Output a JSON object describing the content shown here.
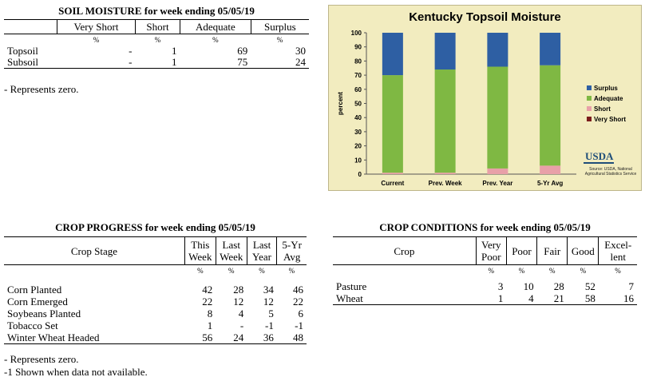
{
  "soil_moisture": {
    "caption": "SOIL MOISTURE for week ending 05/05/19",
    "columns": [
      "",
      "Very Short",
      "Short",
      "Adequate",
      "Surplus"
    ],
    "units": [
      "",
      "%",
      "%",
      "%",
      "%"
    ],
    "rows": [
      [
        "Topsoil",
        "-",
        "1",
        "69",
        "30"
      ],
      [
        "Subsoil",
        "-",
        "1",
        "75",
        "24"
      ]
    ],
    "note": "- Represents zero."
  },
  "crop_progress": {
    "caption": "CROP PROGRESS for week ending 05/05/19",
    "columns": [
      "Crop Stage",
      "This Week",
      "Last Week",
      "Last Year",
      "5-Yr Avg"
    ],
    "units": [
      "",
      "%",
      "%",
      "%",
      "%"
    ],
    "rows": [
      [
        "Corn Planted",
        "42",
        "28",
        "34",
        "46"
      ],
      [
        "Corn Emerged",
        "22",
        "12",
        "12",
        "22"
      ],
      [
        "Soybeans Planted",
        "8",
        "4",
        "5",
        "6"
      ],
      [
        "Tobacco Set",
        "1",
        "-",
        "-1",
        "-1"
      ],
      [
        "Winter Wheat Headed",
        "56",
        "24",
        "36",
        "48"
      ]
    ],
    "notes": [
      "- Represents zero.",
      "-1 Shown when data not available."
    ]
  },
  "crop_conditions": {
    "caption": "CROP CONDITIONS for week ending 05/05/19",
    "columns": [
      "Crop",
      "Very Poor",
      "Poor",
      "Fair",
      "Good",
      "Excel- lent"
    ],
    "units": [
      "",
      "%",
      "%",
      "%",
      "%",
      "%"
    ],
    "rows": [
      [
        "Pasture",
        "3",
        "10",
        "28",
        "52",
        "7"
      ],
      [
        "Wheat",
        "1",
        "4",
        "21",
        "58",
        "16"
      ]
    ]
  },
  "chart_data": {
    "type": "bar",
    "stacked": true,
    "title": "Kentucky Topsoil Moisture",
    "ylabel": "percent",
    "xlabel": "",
    "ylim": [
      0,
      100
    ],
    "yticks": [
      0,
      10,
      20,
      30,
      40,
      50,
      60,
      70,
      80,
      90,
      100
    ],
    "categories": [
      "Current",
      "Prev. Week",
      "Prev. Year",
      "5-Yr Avg"
    ],
    "series": [
      {
        "name": "Very Short",
        "color": "#7b1c1c",
        "values": [
          0,
          0,
          0,
          0
        ]
      },
      {
        "name": "Short",
        "color": "#e8a0a8",
        "values": [
          1,
          1,
          4,
          6
        ]
      },
      {
        "name": "Adequate",
        "color": "#7fb843",
        "values": [
          69,
          73,
          72,
          71
        ]
      },
      {
        "name": "Surplus",
        "color": "#2e5fa3",
        "values": [
          30,
          26,
          24,
          23
        ]
      }
    ],
    "legend_order": [
      "Surplus",
      "Adequate",
      "Short",
      "Very Short"
    ],
    "legend_position": "right",
    "grid": false
  },
  "usda_logo": {
    "text": "USDA",
    "source_text": "Source: USDA, National Agricultural Statistics Service"
  }
}
